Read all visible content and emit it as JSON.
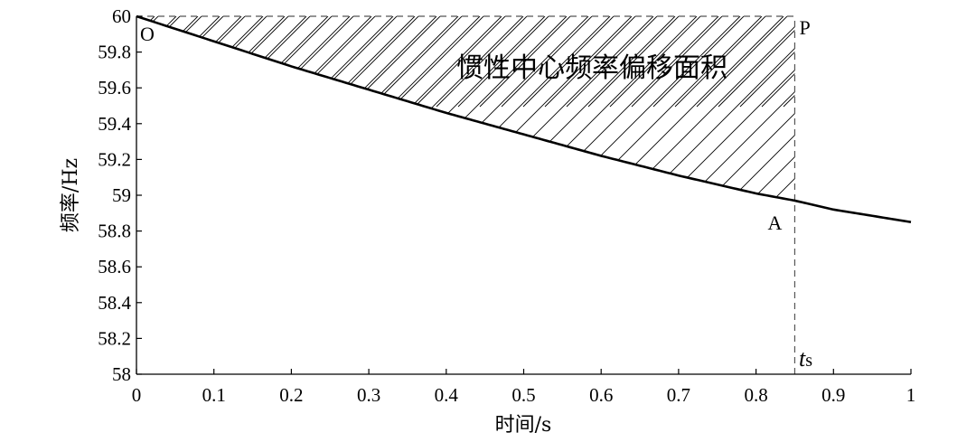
{
  "chart_data": {
    "type": "line",
    "title": "",
    "xlabel": "时间/s",
    "ylabel": "频率/Hz",
    "xlim": [
      0,
      1
    ],
    "ylim": [
      58,
      60
    ],
    "xticks": [
      "0",
      "0.1",
      "0.2",
      "0.3",
      "0.4",
      "0.5",
      "0.6",
      "0.7",
      "0.8",
      "0.9",
      "1"
    ],
    "yticks": [
      "58",
      "58.2",
      "58.4",
      "58.6",
      "58.8",
      "59",
      "59.2",
      "59.4",
      "59.6",
      "59.8",
      "60"
    ],
    "grid": false,
    "series": [
      {
        "name": "",
        "x": [
          0,
          0.1,
          0.2,
          0.3,
          0.4,
          0.5,
          0.6,
          0.7,
          0.8,
          0.85,
          0.9,
          1.0
        ],
        "y": [
          60.0,
          59.86,
          59.72,
          59.59,
          59.46,
          59.34,
          59.22,
          59.11,
          59.01,
          58.97,
          58.92,
          58.85
        ]
      }
    ],
    "shaded_region": {
      "label": "惯性中心频率偏移面积",
      "x_start": 0,
      "x_end": 0.85,
      "upper_y": 60,
      "fill": "hatched"
    },
    "reference_lines": [
      {
        "type": "horizontal",
        "y": 60,
        "x_start": 0,
        "x_end": 0.85,
        "style": "dashed"
      },
      {
        "type": "vertical",
        "x": 0.85,
        "y_start": 58,
        "y_end": 60,
        "style": "dashed"
      }
    ],
    "annotations": [
      {
        "text": "O",
        "x": 0,
        "y": 60
      },
      {
        "text": "P",
        "x": 0.85,
        "y": 60
      },
      {
        "text": "A",
        "x": 0.85,
        "y": 58.97
      }
    ],
    "ts_label": {
      "italic": "t",
      "sub": "s",
      "x": 0.85
    }
  }
}
